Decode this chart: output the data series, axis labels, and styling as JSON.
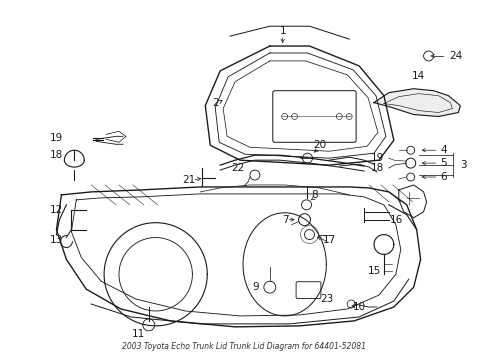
{
  "bg_color": "#ffffff",
  "fig_width": 4.89,
  "fig_height": 3.6,
  "dpi": 100,
  "line_color": "#1a1a1a",
  "label_fontsize": 7.5,
  "title": "2003 Toyota Echo Trunk Lid Trunk Lid Diagram for 64401-52081"
}
